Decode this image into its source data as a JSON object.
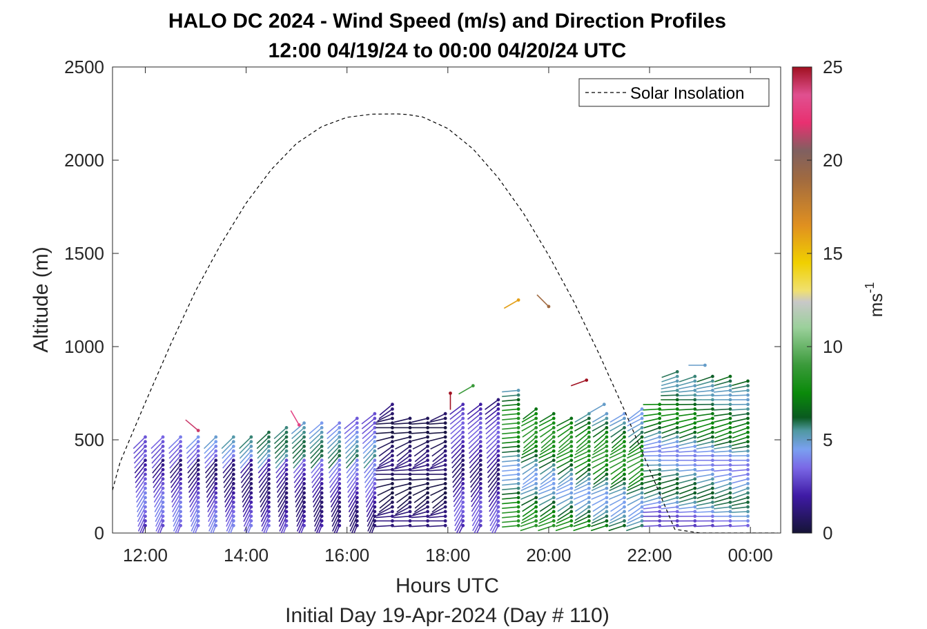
{
  "chart_data": {
    "type": "scatter",
    "title": "HALO DC 2024 - Wind Speed (m/s) and Direction Profiles",
    "subtitle": "12:00 04/19/24 to 00:00 04/20/24  UTC",
    "xlabel": "Hours UTC",
    "xlabel2": "Initial Day 19-Apr-2024 (Day # 110)",
    "ylabel": "Altitude (m)",
    "xlim": [
      11.35,
      24.6
    ],
    "ylim": [
      0,
      2500
    ],
    "x_ticks": [
      12,
      14,
      16,
      18,
      20,
      22,
      24
    ],
    "x_tick_labels": [
      "12:00",
      "14:00",
      "16:00",
      "18:00",
      "20:00",
      "22:00",
      "00:00"
    ],
    "y_ticks": [
      0,
      500,
      1000,
      1500,
      2000,
      2500
    ],
    "y_tick_labels": [
      "0",
      "500",
      "1000",
      "1500",
      "2000",
      "2500"
    ],
    "legend": {
      "entries": [
        "Solar Insolation"
      ],
      "placement": "top-right"
    },
    "colorbar": {
      "label": "ms",
      "label_exponent": "-1",
      "range": [
        0,
        25
      ],
      "ticks": [
        0,
        5,
        10,
        15,
        20,
        25
      ],
      "tick_labels": [
        "0",
        "5",
        "10",
        "15",
        "20",
        "25"
      ],
      "stops": [
        [
          0,
          "#151436"
        ],
        [
          2,
          "#3f1aa5"
        ],
        [
          3.5,
          "#7a68e6"
        ],
        [
          4.5,
          "#7aa0f0"
        ],
        [
          5.5,
          "#4f98a0"
        ],
        [
          6.2,
          "#0a5a20"
        ],
        [
          7.5,
          "#0a8a0a"
        ],
        [
          9,
          "#3a9a3a"
        ],
        [
          11,
          "#9ad09a"
        ],
        [
          12.4,
          "#c8c8c8"
        ],
        [
          13,
          "#f0e070"
        ],
        [
          14.5,
          "#f0d000"
        ],
        [
          16.5,
          "#e09020"
        ],
        [
          19,
          "#a06a40"
        ],
        [
          20.5,
          "#806060"
        ],
        [
          22,
          "#e83070"
        ],
        [
          23.5,
          "#e05090"
        ],
        [
          25,
          "#a01020"
        ]
      ]
    },
    "solar_insolation": {
      "x": [
        11.35,
        11.5,
        12,
        12.5,
        13,
        13.5,
        14,
        14.5,
        15,
        15.5,
        16,
        16.5,
        17,
        17.2,
        17.5,
        18,
        18.5,
        19,
        19.5,
        20,
        20.5,
        21,
        21.5,
        22,
        22.5,
        23,
        23.3,
        23.5,
        24,
        24.55
      ],
      "y": [
        230,
        380,
        700,
        1010,
        1300,
        1550,
        1770,
        1950,
        2090,
        2180,
        2230,
        2247,
        2248,
        2245,
        2232,
        2170,
        2060,
        1905,
        1715,
        1490,
        1240,
        960,
        660,
        340,
        20,
        0,
        0,
        0,
        0,
        0
      ]
    },
    "wind_profiles": {
      "times": [
        12.0,
        12.35,
        12.7,
        13.05,
        13.4,
        13.75,
        14.1,
        14.45,
        14.8,
        15.15,
        15.5,
        15.85,
        16.2,
        16.55,
        16.9,
        17.25,
        17.6,
        17.95,
        18.3,
        18.65,
        19.0,
        19.4,
        19.75,
        20.1,
        20.45,
        20.8,
        21.15,
        21.5,
        21.85,
        22.2,
        22.55,
        22.9,
        23.25,
        23.6,
        23.95
      ],
      "top_altitudes": [
        520,
        520,
        520,
        520,
        520,
        520,
        520,
        550,
        580,
        590,
        600,
        610,
        620,
        650,
        690,
        620,
        620,
        650,
        690,
        710,
        720,
        780,
        680,
        650,
        620,
        640,
        650,
        660,
        670,
        700,
        870,
        860,
        850,
        840,
        830
      ],
      "barb_spacing_m": 25,
      "isolated_barbs": [
        {
          "time": 13.05,
          "alt": 550,
          "speed": 24,
          "dir": 310
        },
        {
          "time": 15.05,
          "alt": 580,
          "speed": 23,
          "dir": 330
        },
        {
          "time": 18.05,
          "alt": 750,
          "speed": 25,
          "dir": 180
        },
        {
          "time": 18.5,
          "alt": 790,
          "speed": 9,
          "dir": 240
        },
        {
          "time": 19.4,
          "alt": 1250,
          "speed": 16,
          "dir": 240
        },
        {
          "time": 20.0,
          "alt": 1215,
          "speed": 19,
          "dir": 315
        },
        {
          "time": 20.75,
          "alt": 820,
          "speed": 25,
          "dir": 250
        },
        {
          "time": 21.1,
          "alt": 690,
          "speed": 5,
          "dir": 240
        },
        {
          "time": 23.1,
          "alt": 900,
          "speed": 5,
          "dir": 270
        }
      ]
    }
  }
}
